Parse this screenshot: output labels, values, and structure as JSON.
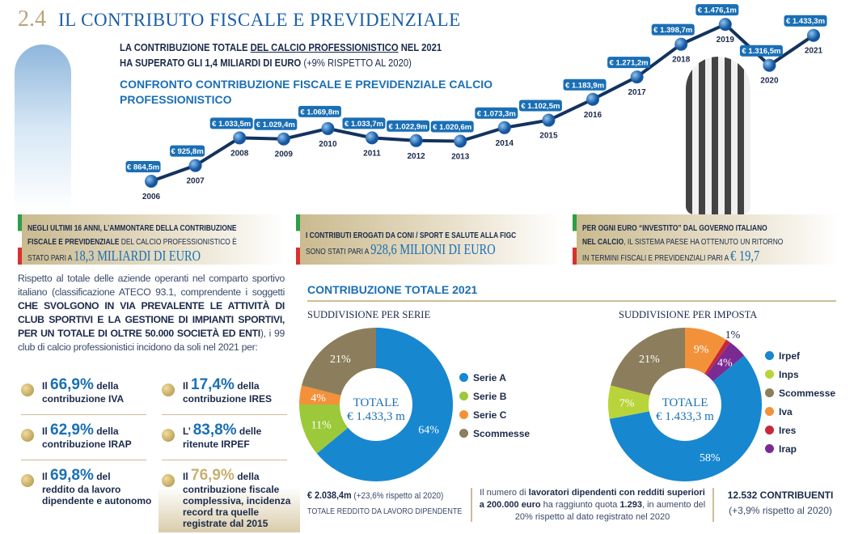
{
  "header": {
    "section_number": "2.4",
    "title": "IL CONTRIBUTO FISCALE E PREVIDENZIALE",
    "intro_a": "LA CONTRIBUZIONE TOTALE ",
    "intro_u": "DEL CALCIO PROFESSIONISTICO",
    "intro_b": " NEL 2021",
    "intro_c": "HA SUPERATO GLI ",
    "intro_d": "1,4 MILIARDI DI EURO",
    "intro_e": " (+9% RISPETTO AL 2020)"
  },
  "chart_data": [
    {
      "type": "line",
      "title": "CONFRONTO CONTRIBUZIONE FISCALE E PREVIDENZIALE CALCIO PROFESSIONISTICO",
      "unit": "€ m",
      "x": [
        "2006",
        "2007",
        "2008",
        "2009",
        "2010",
        "2011",
        "2012",
        "2013",
        "2014",
        "2015",
        "2016",
        "2017",
        "2018",
        "2019",
        "2020",
        "2021"
      ],
      "values": [
        864.5,
        925.8,
        1033.5,
        1029.4,
        1069.8,
        1033.7,
        1022.9,
        1020.6,
        1073.3,
        1102.5,
        1183.9,
        1271.2,
        1398.7,
        1476.1,
        1316.5,
        1433.3
      ],
      "labels": [
        "€ 864,5m",
        "€ 925,8m",
        "€ 1.033,5m",
        "€ 1.029,4m",
        "€ 1.069,8m",
        "€ 1.033,7m",
        "€ 1.022,9m",
        "€ 1.020,6m",
        "€ 1.073,3m",
        "€ 1.102,5m",
        "€ 1.183,9m",
        "€ 1.271,2m",
        "€ 1.398,7m",
        "€ 1.476,1m",
        "€ 1.316,5m",
        "€ 1.433,3m"
      ],
      "color": "#1a6fb5"
    },
    {
      "type": "pie",
      "title": "SUDDIVISIONE PER SERIE",
      "center": [
        "TOTALE",
        "€ 1.433,3 m"
      ],
      "categories": [
        "Serie A",
        "Serie B",
        "Serie C",
        "Scommesse"
      ],
      "values": [
        64,
        11,
        4,
        21
      ],
      "labels": [
        "64%",
        "11%",
        "4%",
        "21%"
      ],
      "colors": [
        "#1787d0",
        "#9bc93a",
        "#f3913a",
        "#8c7e5c"
      ]
    },
    {
      "type": "pie",
      "title": "SUDDIVISIONE PER IMPOSTA",
      "center": [
        "TOTALE",
        "€ 1.433,3 m"
      ],
      "categories": [
        "Irpef",
        "Inps",
        "Scommesse",
        "Iva",
        "Ires",
        "Irap"
      ],
      "values": [
        58,
        7,
        21,
        9,
        1,
        4
      ],
      "labels": [
        "58%",
        "7%",
        "21%",
        "9%",
        "1%",
        "4%"
      ],
      "colors": [
        "#1787d0",
        "#b9d43a",
        "#8c7e5c",
        "#f3913a",
        "#c8283a",
        "#7b2a92"
      ],
      "slice_order_clockwise_from_top": [
        "Iva",
        "Ires",
        "Irap",
        "Irpef",
        "Inps",
        "Scommesse"
      ]
    }
  ],
  "bands": [
    {
      "l1a": "NEGLI ULTIMI 16 ANNI, L’AMMONTARE DELLA CONTRIBUZIONE",
      "l2a": "FISCALE E PREVIDENZIALE",
      "l2b": " DEL CALCIO PROFESSIONISTICO È",
      "l3a": "STATO PARI A ",
      "big": "18,3 MILIARDI DI EURO"
    },
    {
      "l1a": "I CONTRIBUTI EROGATI DA CONI / SPORT E SALUTE ALLA FIGC",
      "l2a": "SONO STATI PARI A ",
      "big": "928,6 MILIONI DI EURO"
    },
    {
      "l1a": "PER OGNI EURO “INVESTITO” DAL GOVERNO ITALIANO",
      "l2a": "NEL CALCIO",
      "l2b": ", IL SISTEMA PAESE HA OTTENUTO UN RITORNO",
      "l3a": "IN TERMINI FISCALI E PREVIDENZIALI PARI A ",
      "big": "€ 19,7"
    }
  ],
  "paragraph": {
    "a": "Rispetto al totale delle aziende operanti nel comparto sportivo italiano (classificazione ATECO 93.1, comprendente i soggetti ",
    "b": "CHE SVOLGONO IN VIA PREVALENTE LE ATTIVITÀ DI CLUB SPORTIVI E LA GESTIONE DI IMPIANTI SPORTIVI, PER UN TOTALE DI OLTRE 50.000 SOCIETÀ ED ENTI",
    "c": "), i 99 club di calcio professionistici incidono da soli nel 2021 per:"
  },
  "stats": [
    {
      "pre": "Il ",
      "pct": "66,9%",
      "post": " della",
      "rest": "contribuzione IVA"
    },
    {
      "pre": "Il ",
      "pct": "17,4%",
      "post": " della",
      "rest": "contribuzione IRES"
    },
    {
      "pre": "Il ",
      "pct": "62,9%",
      "post": " della",
      "rest": "contribuzione IRAP"
    },
    {
      "pre": "L’ ",
      "pct": "83,8%",
      "post": " delle",
      "rest": "ritenute IRPEF"
    },
    {
      "pre": "Il ",
      "pct": "69,8%",
      "post": " del",
      "rest": "reddito da lavoro dipendente e autonomo"
    },
    {
      "pre": "Il ",
      "pct": "76,9%",
      "post": " della",
      "rest": "contribuzione fiscale complessiva, incidenza record tra quelle registrate dal 2015"
    }
  ],
  "section2021": {
    "title": "CONTRIBUZIONE TOTALE 2021"
  },
  "footer": {
    "f1a": "€ 2.038,4m",
    "f1b": " (+23,6% rispetto al 2020)",
    "f1c": "TOTALE REDDITO DA LAVORO DIPENDENTE",
    "f2a": "Il numero di ",
    "f2b": "lavoratori dipendenti con redditi superiori a 200.000 euro",
    "f2c": " ha raggiunto quota ",
    "f2d": "1.293",
    "f2e": ", in aumento del 20% rispetto al dato registrato nel 2020",
    "f3a": "12.532 CONTRIBUENTI",
    "f3b": "(+3,9% rispetto al 2020)"
  }
}
